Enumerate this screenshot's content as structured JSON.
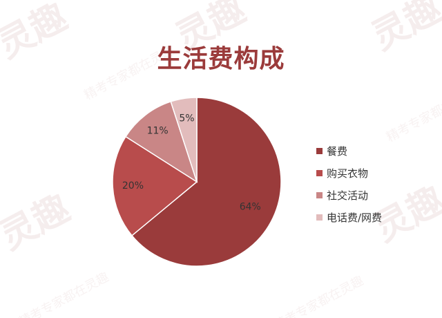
{
  "chart_data": {
    "type": "pie",
    "title": "生活费构成",
    "categories": [
      "餐费",
      "购买衣物",
      "社交活动",
      "电话费/网费"
    ],
    "values": [
      64,
      20,
      11,
      5
    ],
    "labels": [
      "64%",
      "20%",
      "11%",
      "5%"
    ],
    "colors": [
      "#9a3b3b",
      "#b84c4c",
      "#c98686",
      "#e2bcbc"
    ],
    "legend_position": "right"
  },
  "watermark": {
    "text": "灵趣",
    "subtext": "精考专家都在灵趣"
  }
}
